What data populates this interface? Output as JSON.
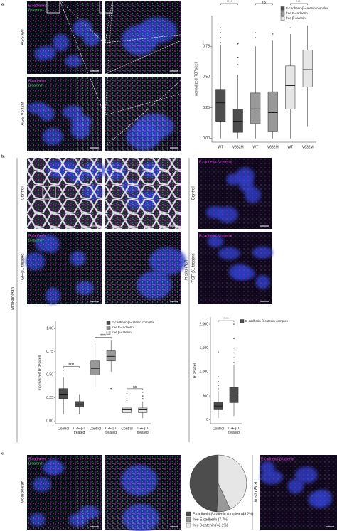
{
  "panel_labels": [
    "a.",
    "b.",
    "c."
  ],
  "image_labels": {
    "ecadherin": "E-cadherin",
    "bcatenin": "β-catenin",
    "complex": "E-cadherin-β-catenin"
  },
  "row_labels": {
    "a_wt": "AGS WT",
    "a_mut": "AGS V632M",
    "b_control": "Control",
    "b_tgf": "TGF-β1 treated",
    "b_pla_control": "Control",
    "b_pla_tgf": "TGF-β1 treated",
    "b_method": "MolBoolean",
    "b_pla": "in situ PLA",
    "c_method": "MolBoolean",
    "c_pla": "in situ PLA"
  },
  "chart_data": [
    {
      "type": "box",
      "y_label": "normalized RCPs/cell",
      "categories": [
        "WT",
        "V632M",
        "WT",
        "V632M",
        "WT",
        "V632M"
      ],
      "ylim": [
        -0.03,
        1.0
      ],
      "yticks": [
        {
          "value": 0,
          "label": "0.00"
        },
        {
          "value": 0.25,
          "label": "0.25"
        },
        {
          "value": 0.5,
          "label": "0.50"
        },
        {
          "value": 0.75,
          "label": "0.75"
        }
      ],
      "series": [
        {
          "name": "E-cadherin-β-catenin complex",
          "color": "#4d4d4d",
          "values": [
            {
              "low": 0,
              "q1": 0.14,
              "median": 0.29,
              "q3": 0.4,
              "high": 0.76,
              "outliers": [
                0.78,
                0.82,
                0.86,
                0.9
              ]
            },
            {
              "low": 0,
              "q1": 0.05,
              "median": 0.14,
              "q3": 0.24,
              "high": 0.52,
              "outliers": [
                0.6,
                0.66,
                0.77
              ]
            }
          ]
        },
        {
          "name": "free E-cadherin",
          "color": "#999999",
          "values": [
            {
              "low": 0,
              "q1": 0.12,
              "median": 0.24,
              "q3": 0.37,
              "high": 0.75,
              "outliers": [
                0.82,
                0.86
              ]
            },
            {
              "low": 0,
              "q1": 0.06,
              "median": 0.21,
              "q3": 0.38,
              "high": 0.8,
              "outliers": [
                0.85
              ]
            }
          ]
        },
        {
          "name": "free β-catenin",
          "color": "#e6e6e6",
          "values": [
            {
              "low": 0,
              "q1": 0.24,
              "median": 0.43,
              "q3": 0.59,
              "high": 0.85,
              "outliers": [
                0.9
              ]
            },
            {
              "low": 0.1,
              "q1": 0.42,
              "median": 0.56,
              "q3": 0.72,
              "high": 0.92,
              "outliers": []
            }
          ]
        }
      ],
      "annotations": [
        "****",
        "ns",
        "****"
      ]
    },
    {
      "type": "box",
      "y_label": "normalized RCPs/cell",
      "categories": [
        "Control",
        "TGF-β1 treated",
        "Control",
        "TGF-β1 treated",
        "Control",
        "TGF-β1 treated"
      ],
      "ylim": [
        -0.03,
        1.08
      ],
      "yticks": [
        {
          "value": 0,
          "label": "0.00"
        },
        {
          "value": 0.25,
          "label": "0.25"
        },
        {
          "value": 0.5,
          "label": "0.50"
        },
        {
          "value": 0.75,
          "label": "0.75"
        },
        {
          "value": 1,
          "label": "1.00"
        }
      ],
      "series": [
        {
          "name": "E-cadherin-β-catenin complex",
          "color": "#4d4d4d",
          "values": [
            {
              "low": 0.07,
              "q1": 0.24,
              "median": 0.29,
              "q3": 0.35,
              "high": 0.47,
              "outliers": [
                0.55
              ]
            },
            {
              "low": 0.07,
              "q1": 0.15,
              "median": 0.18,
              "q3": 0.21,
              "high": 0.29,
              "outliers": []
            }
          ]
        },
        {
          "name": "free E-cadherin",
          "color": "#999999",
          "values": [
            {
              "low": 0.36,
              "q1": 0.5,
              "median": 0.57,
              "q3": 0.65,
              "high": 0.84,
              "outliers": []
            },
            {
              "low": 0.53,
              "q1": 0.65,
              "median": 0.7,
              "q3": 0.76,
              "high": 0.87,
              "outliers": [
                0.35
              ]
            }
          ]
        },
        {
          "name": "free β-catenin",
          "color": "#e6e6e6",
          "values": [
            {
              "low": 0.03,
              "q1": 0.09,
              "median": 0.12,
              "q3": 0.14,
              "high": 0.21,
              "outliers": [
                0.22,
                0.24,
                0.26,
                0.28,
                0.3
              ]
            },
            {
              "low": 0.03,
              "q1": 0.09,
              "median": 0.12,
              "q3": 0.14,
              "high": 0.21,
              "outliers": [
                0.24,
                0.27,
                0.31
              ]
            }
          ]
        }
      ],
      "annotations": [
        "****",
        "****",
        "ns"
      ]
    },
    {
      "type": "box",
      "y_label": "RCPs/cell",
      "categories": [
        "Control",
        "TGF-β1 treated"
      ],
      "ylim": [
        -80,
        2150
      ],
      "yticks": [
        0,
        500,
        {
          "value": 1000,
          "label": "1,000"
        },
        {
          "value": 1500,
          "label": "1,500"
        },
        {
          "value": 2000,
          "label": "2,000"
        }
      ],
      "series": [
        {
          "name": "E-cadherin-β-catenin complex",
          "color": "#4d4d4d",
          "values": [
            {
              "low": 40,
              "q1": 210,
              "median": 290,
              "q3": 370,
              "high": 600,
              "outliers": [
                650,
                720,
                800,
                900,
                1420
              ]
            },
            {
              "low": 80,
              "q1": 360,
              "median": 520,
              "q3": 680,
              "high": 1150,
              "outliers": [
                1200,
                1300,
                1400,
                1500,
                1700,
                2000
              ]
            }
          ]
        }
      ],
      "annotations": [
        "****"
      ]
    },
    {
      "type": "pie",
      "categories": [
        "E-cadherin-β-catenin complex (49.2%)",
        "free E-cadherin (7.7%)",
        "free β-catenin (43.1%)"
      ],
      "values": [
        49.2,
        7.7,
        43.1
      ],
      "colors": [
        "#4d4d4d",
        "#999999",
        "#e6e6e6"
      ]
    }
  ]
}
